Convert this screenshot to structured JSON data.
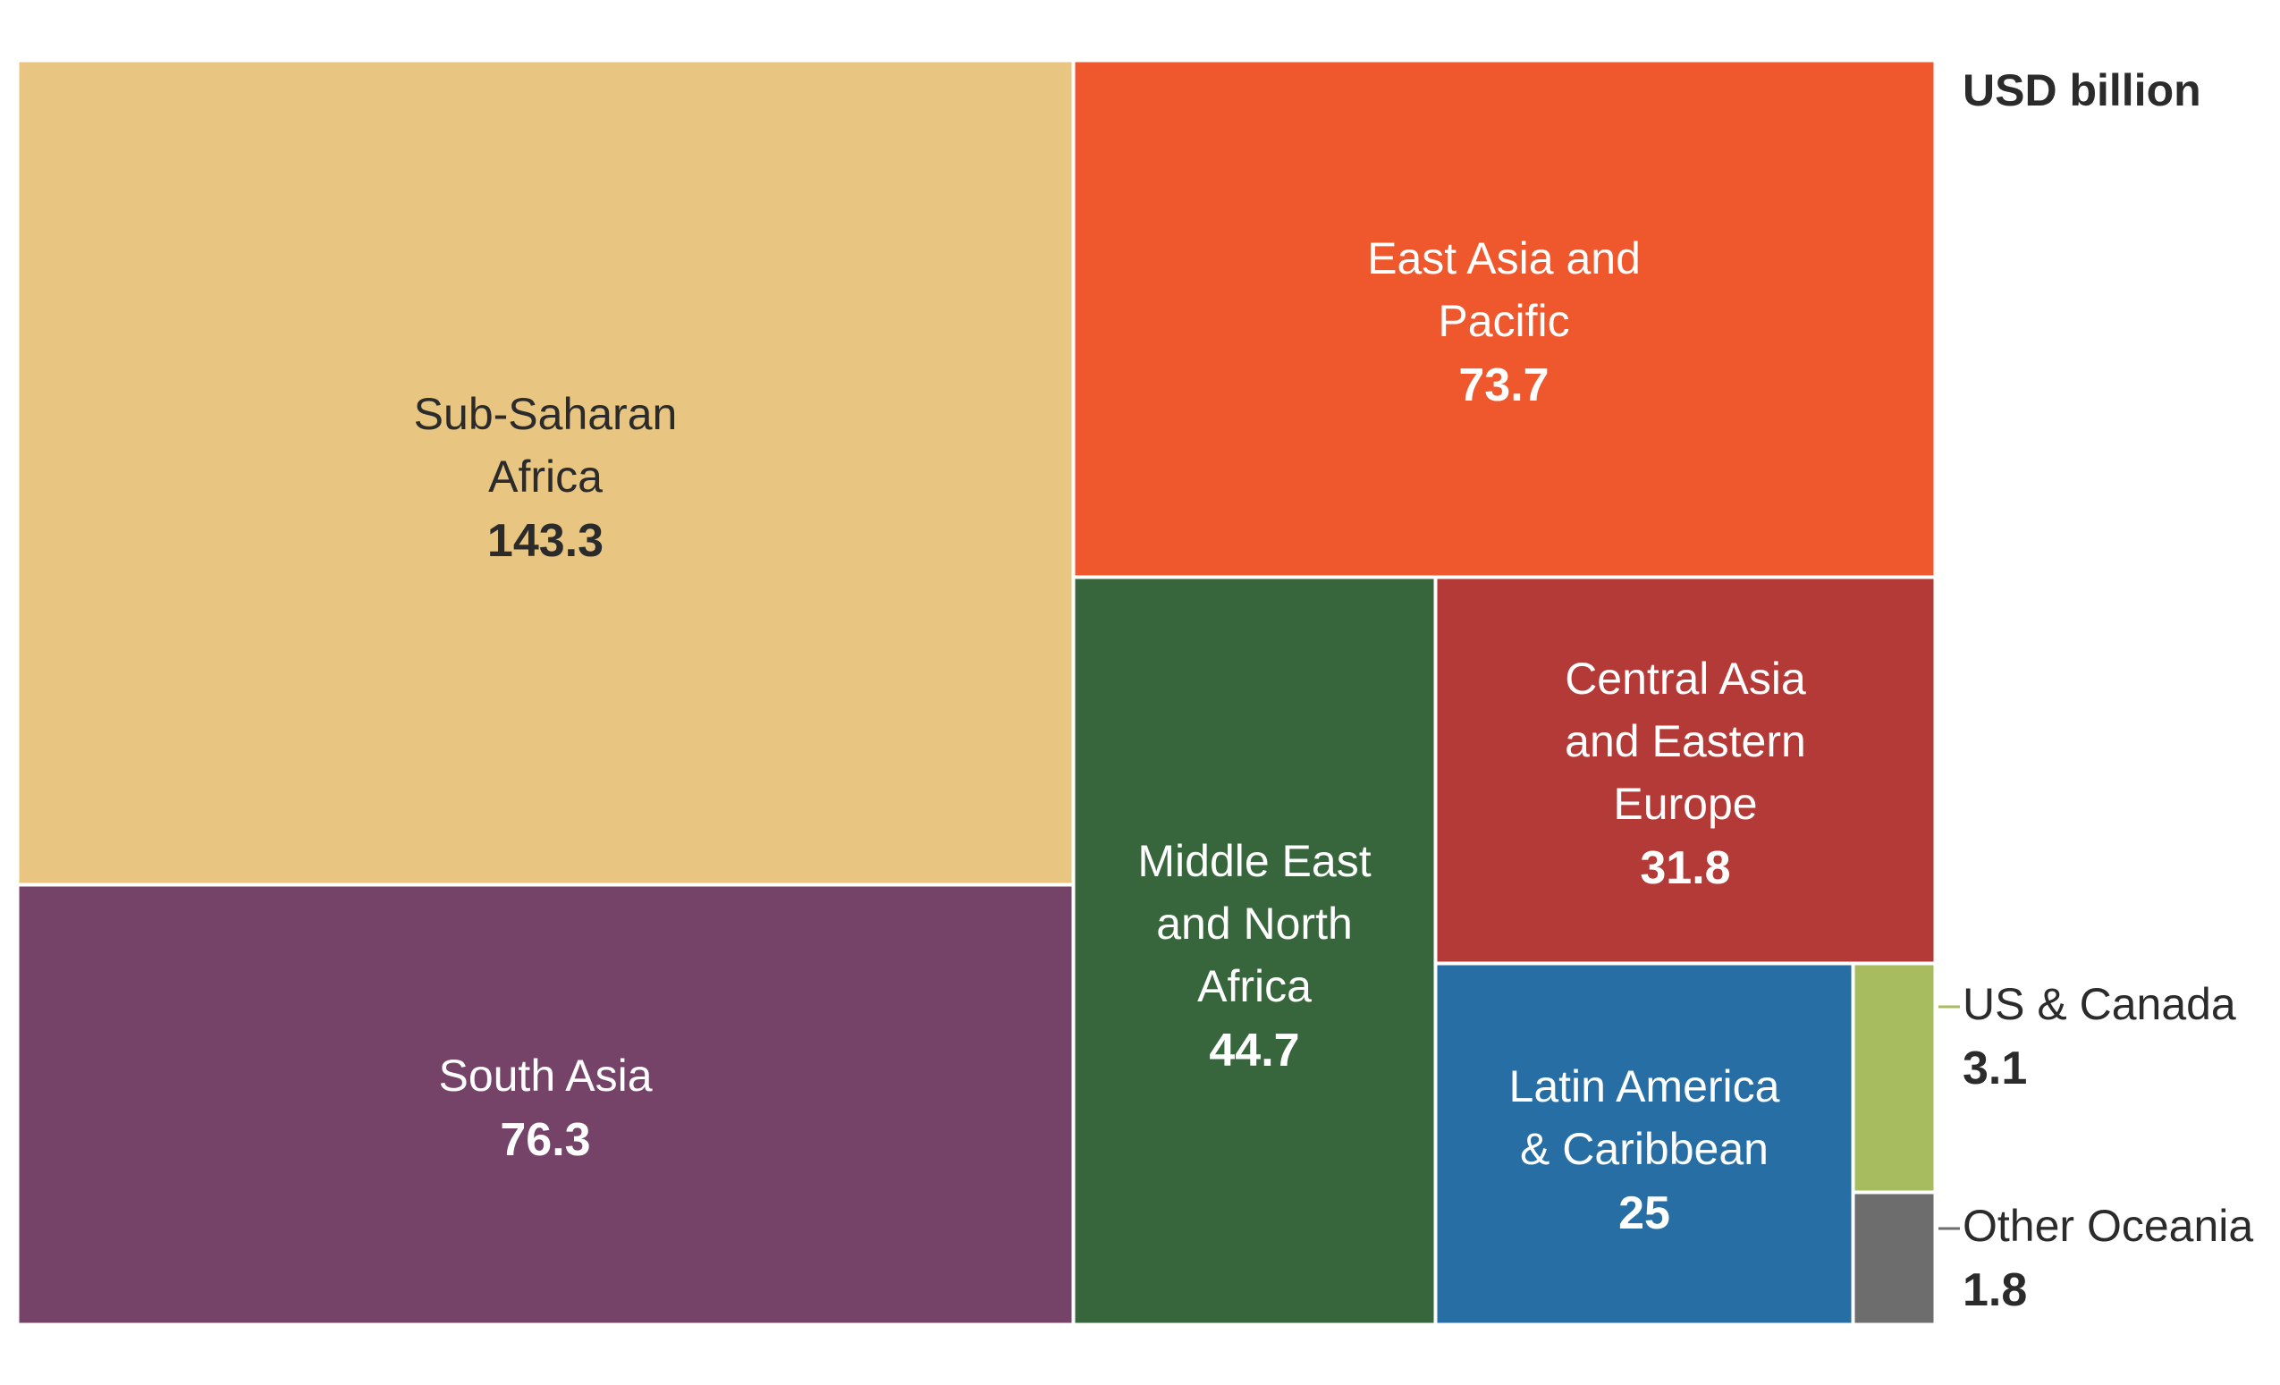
{
  "chart_data": {
    "type": "treemap",
    "unit_label": "USD billion",
    "cells": [
      {
        "label_lines": [
          "Sub-Saharan",
          "Africa"
        ],
        "value": 143.3,
        "value_label": "143.3",
        "color": "#E8C682",
        "text_color": "#2b2b2b"
      },
      {
        "label_lines": [
          "South Asia"
        ],
        "value": 76.3,
        "value_label": "76.3",
        "color": "#744367",
        "text_color": "#ffffff"
      },
      {
        "label_lines": [
          "East Asia and",
          "Pacific"
        ],
        "value": 73.7,
        "value_label": "73.7",
        "color": "#EF572D",
        "text_color": "#ffffff"
      },
      {
        "label_lines": [
          "Middle East",
          "and North",
          "Africa"
        ],
        "value": 44.7,
        "value_label": "44.7",
        "color": "#38663C",
        "text_color": "#ffffff"
      },
      {
        "label_lines": [
          "Central Asia",
          "and Eastern",
          "Europe"
        ],
        "value": 31.8,
        "value_label": "31.8",
        "color": "#B33A37",
        "text_color": "#ffffff"
      },
      {
        "label_lines": [
          "Latin America",
          "& Caribbean"
        ],
        "value": 25,
        "value_label": "25",
        "color": "#266EA4",
        "text_color": "#ffffff"
      },
      {
        "label_lines": [
          "US & Canada"
        ],
        "value": 3.1,
        "value_label": "3.1",
        "color": "#A6BC5E",
        "text_color": "#2b2b2b",
        "external_label": true
      },
      {
        "label_lines": [
          "Other Oceania"
        ],
        "value": 1.8,
        "value_label": "1.8",
        "color": "#6D6D6D",
        "text_color": "#2b2b2b",
        "external_label": true
      }
    ]
  }
}
